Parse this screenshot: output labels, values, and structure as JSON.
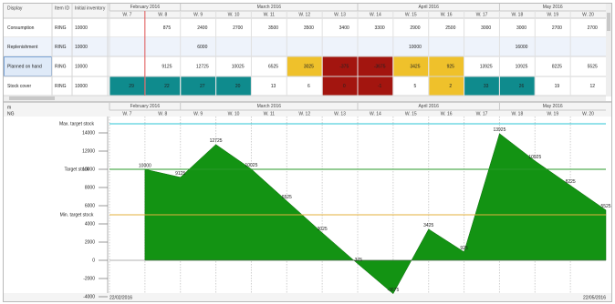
{
  "table": {
    "columns": [
      "Display",
      "Item ID",
      "Initial inventory"
    ],
    "months": [
      "February 2016",
      "March 2016",
      "April 2016",
      "May 2016"
    ],
    "rows": [
      {
        "display": "Consumption",
        "item_id": "RING",
        "initial": 10000,
        "cells": [
          null,
          875,
          2400,
          2700,
          3500,
          3500,
          3400,
          3300,
          2900,
          2500,
          3000,
          3000,
          2700,
          2700
        ],
        "cell_colors": [
          null,
          null,
          null,
          null,
          null,
          null,
          null,
          null,
          null,
          null,
          null,
          null,
          null,
          null
        ]
      },
      {
        "display": "Replenishment",
        "item_id": "RING",
        "initial": 10000,
        "cells": [
          null,
          null,
          6000,
          null,
          null,
          null,
          null,
          null,
          10000,
          null,
          null,
          16000,
          null,
          null
        ],
        "cell_colors": [
          null,
          null,
          null,
          null,
          null,
          null,
          null,
          null,
          null,
          null,
          null,
          null,
          null,
          null
        ]
      },
      {
        "display": "Planned on hand",
        "item_id": "RING",
        "initial": 10000,
        "cells": [
          null,
          9125,
          12725,
          10025,
          6525,
          3025,
          -375,
          -3675,
          3425,
          925,
          13925,
          10925,
          8225,
          5525
        ],
        "cell_colors": [
          null,
          null,
          null,
          null,
          null,
          "#efc12b",
          "#a3150f",
          "#a3150f",
          "#efc12b",
          "#efc12b",
          null,
          null,
          null,
          null
        ]
      },
      {
        "display": "Stock cover",
        "item_id": "RING",
        "initial": 10000,
        "cells": [
          29,
          22,
          27,
          20,
          13,
          6,
          0,
          -1,
          5,
          2,
          33,
          26,
          19,
          12
        ],
        "cell_colors": [
          "#0f8b8d",
          "#0f8b8d",
          "#0f8b8d",
          "#0f8b8d",
          null,
          null,
          "#a3150f",
          "#a3150f",
          null,
          "#efc12b",
          "#0f8b8d",
          "#0f8b8d",
          null,
          null
        ]
      }
    ]
  },
  "lower_panel_labels": [
    "m",
    "NG"
  ],
  "chart_data": {
    "type": "area",
    "categories": [
      "W. 7",
      "W. 8",
      "W. 9",
      "W. 10",
      "W. 11",
      "W. 12",
      "W. 13",
      "W. 14",
      "W. 15",
      "W. 16",
      "W. 17",
      "W. 18",
      "W. 19",
      "W. 20"
    ],
    "series": [
      {
        "color": "#139313",
        "values": [
          10000,
          9125,
          12725,
          10025,
          6525,
          3025,
          -375,
          -3675,
          3425,
          925,
          13925,
          10925,
          8225,
          5525
        ]
      }
    ],
    "reference_lines": [
      {
        "label": "Max. target stock",
        "value": 15000,
        "color": "#2bc6d6"
      },
      {
        "label": "Target stock",
        "value": 10000,
        "color": "#2a9a2a"
      },
      {
        "label": "Min. target stock",
        "value": 5000,
        "color": "#e3b23c"
      }
    ],
    "ylim": [
      -4000,
      15800
    ],
    "yticks": [
      -4000,
      -2000,
      0,
      2000,
      4000,
      6000,
      8000,
      10000,
      12000,
      14000
    ],
    "grid": true
  },
  "footer": {
    "start": "22/02/2016",
    "end": "22/05/2016"
  }
}
